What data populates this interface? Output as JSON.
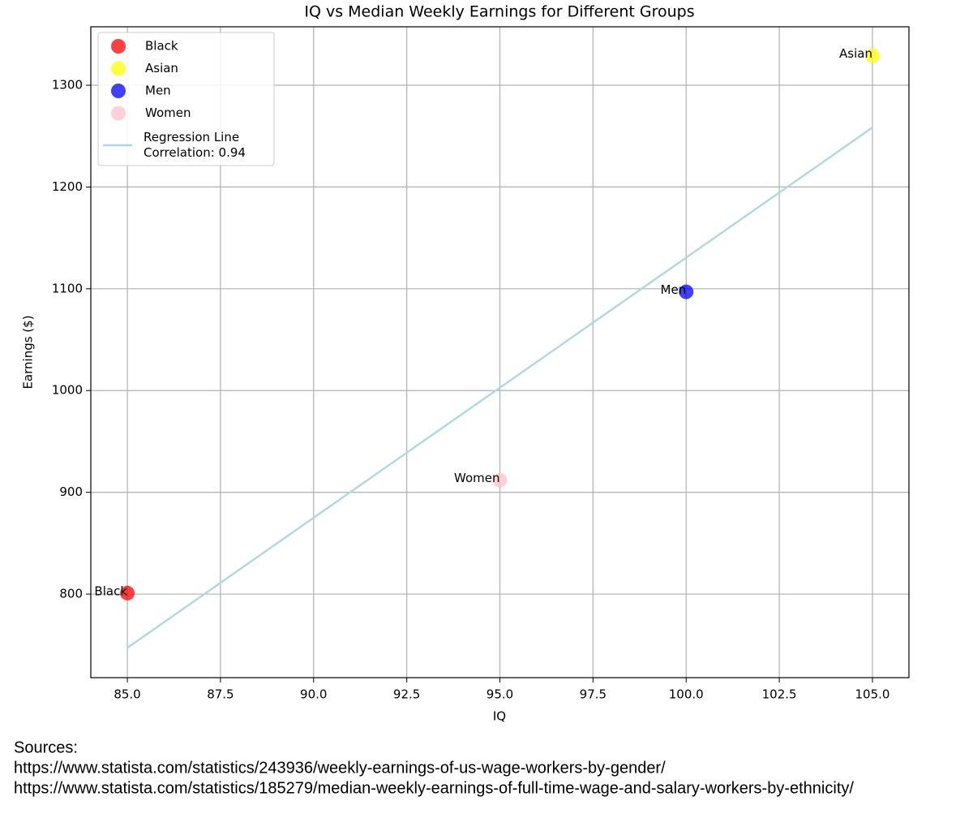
{
  "chart_data": {
    "type": "scatter",
    "title": "IQ vs Median Weekly Earnings for Different Groups",
    "x_label": "IQ",
    "y_label": "Earnings ($)",
    "series": [
      {
        "name": "Black",
        "color": "#ff0000",
        "x": [
          85
        ],
        "values": [
          801
        ]
      },
      {
        "name": "Asian",
        "color": "#ffff00",
        "x": [
          105
        ],
        "values": [
          1329
        ]
      },
      {
        "name": "Men",
        "color": "#0000ff",
        "x": [
          100
        ],
        "values": [
          1097
        ]
      },
      {
        "name": "Women",
        "color": "#ffc0cb",
        "x": [
          95
        ],
        "values": [
          912
        ]
      },
      {
        "name": "Regression Line\nCorrelation: 0.94",
        "color": "#add8e6",
        "type": "line",
        "x": [
          85,
          105
        ],
        "values": [
          747.2,
          1258.4
        ]
      }
    ],
    "xlim": [
      84.02,
      105.98
    ],
    "ylim": [
      717.9,
      1357.4
    ],
    "xticks": [
      {
        "value": 85,
        "label": "85.0"
      },
      {
        "value": 87.5,
        "label": "87.5"
      },
      {
        "value": 90,
        "label": "90.0"
      },
      {
        "value": 92.5,
        "label": "92.5"
      },
      {
        "value": 95,
        "label": "95.0"
      },
      {
        "value": 97.5,
        "label": "97.5"
      },
      {
        "value": 100,
        "label": "100.0"
      },
      {
        "value": 102.5,
        "label": "102.5"
      },
      {
        "value": 105,
        "label": "105.0"
      }
    ],
    "yticks": [
      800,
      900,
      1000,
      1100,
      1200,
      1300
    ],
    "grid": true,
    "legend": "upper left",
    "sources": [
      "Sources:",
      "https://www.statista.com/statistics/243936/weekly-earnings-of-us-wage-workers-by-gender/",
      "https://www.statista.com/statistics/185279/median-weekly-earnings-of-full-time-wage-and-salary-workers-by-ethnicity/"
    ]
  }
}
